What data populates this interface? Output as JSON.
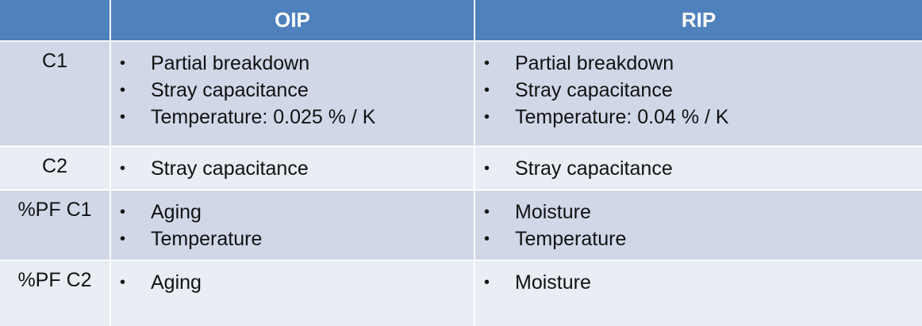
{
  "header": {
    "col0": "",
    "col1": "OIP",
    "col2": "RIP"
  },
  "rows": [
    {
      "label": "C1",
      "oip": [
        "Partial breakdown",
        "Stray capacitance",
        "Temperature: 0.025 % / K"
      ],
      "rip": [
        "Partial breakdown",
        "Stray capacitance",
        "Temperature:  0.04 % / K"
      ]
    },
    {
      "label": "C2",
      "oip": [
        "Stray capacitance"
      ],
      "rip": [
        "Stray capacitance"
      ]
    },
    {
      "label": "%PF C1",
      "oip": [
        "Aging",
        "Temperature"
      ],
      "rip": [
        "Moisture",
        "Temperature"
      ]
    },
    {
      "label": "%PF C2",
      "oip": [
        "Aging"
      ],
      "rip": [
        "Moisture"
      ]
    }
  ],
  "bullet_glyph": "•",
  "colors": {
    "header": "#4f81bd",
    "row_dark": "#d0d8e8",
    "row_light": "#e9edf4"
  }
}
